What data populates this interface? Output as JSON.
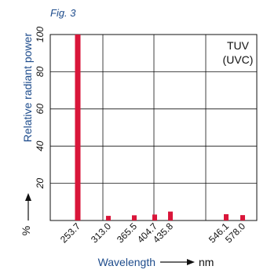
{
  "figure_label": "Fig. 3",
  "chart_data": {
    "type": "bar",
    "title": "",
    "ylabel": "Relative radiant power",
    "yunit": "%",
    "xlabel": "Wavelength",
    "xunit": "nm",
    "ylim": [
      0,
      100
    ],
    "yticks": [
      "20",
      "40",
      "60",
      "80",
      "100"
    ],
    "grid": true,
    "legend": "none",
    "annotation": [
      "TUV",
      "(UVC)"
    ],
    "bar_color": "#d9163a",
    "categories": [
      "253.7",
      "313.0",
      "365.5",
      "404.7",
      "435.8",
      "546.1",
      "578.0"
    ],
    "values": [
      100,
      2.5,
      2.8,
      3.2,
      4.8,
      3.4,
      2.9
    ]
  }
}
